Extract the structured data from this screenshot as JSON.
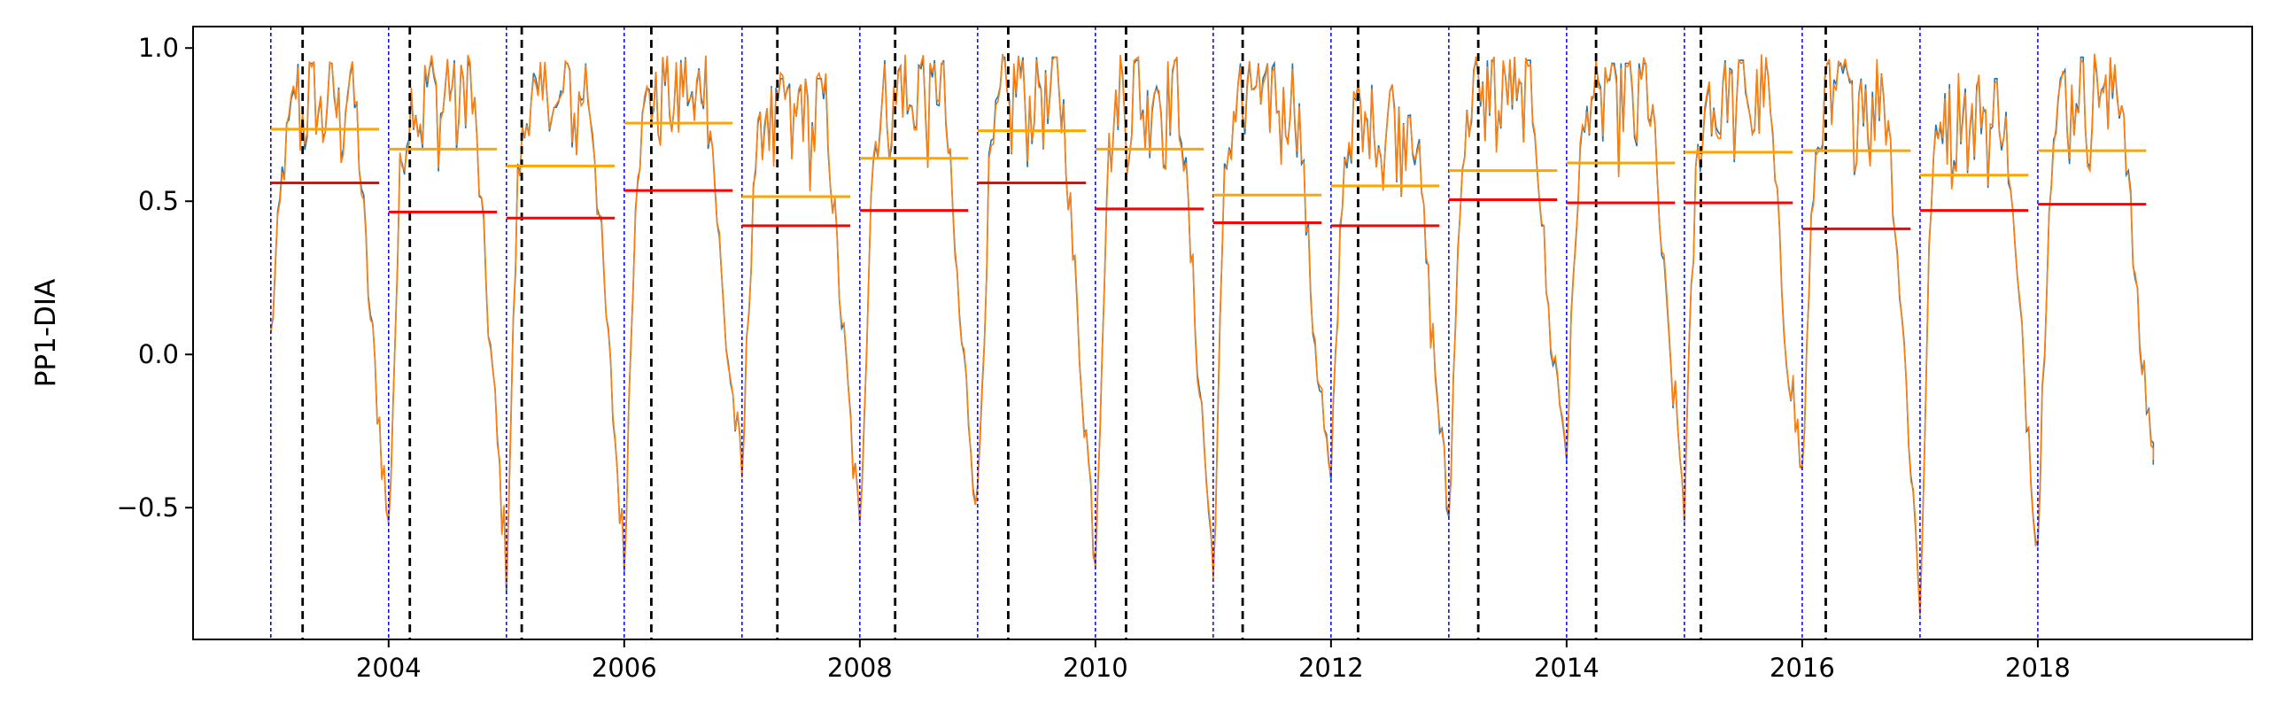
{
  "chart_data": {
    "type": "line",
    "ylabel": "PP1-DIA",
    "xlabel": "",
    "title": "",
    "xlim": [
      2002.34,
      2019.82
    ],
    "ylim": [
      -0.93,
      1.07
    ],
    "x_ticks": [
      2004,
      2006,
      2008,
      2010,
      2012,
      2014,
      2016,
      2018
    ],
    "x_tick_labels": [
      "2004",
      "2006",
      "2008",
      "2010",
      "2012",
      "2014",
      "2016",
      "2018"
    ],
    "y_ticks": [
      1.0,
      0.5,
      0.0,
      -0.5
    ],
    "y_tick_labels": [
      "1.0",
      "0.5",
      "0.0",
      "−0.5"
    ],
    "grid": false,
    "legend": "none",
    "colors": {
      "series_blue": "#1f77b4",
      "series_orange": "#ff7f0e",
      "year_boundary": "#0000ff",
      "marker_dashed": "#000000",
      "mean_red": "#ff0000",
      "mean_orange": "#ffa500"
    },
    "year_boundaries": [
      2003,
      2004,
      2005,
      2006,
      2007,
      2008,
      2009,
      2010,
      2011,
      2012,
      2013,
      2014,
      2015,
      2016,
      2017,
      2018
    ],
    "black_dashed_lines": [
      2003.27,
      2004.18,
      2005.13,
      2006.23,
      2007.3,
      2008.3,
      2009.26,
      2010.26,
      2011.25,
      2012.23,
      2013.25,
      2014.25,
      2015.14,
      2016.2
    ],
    "annual_red_level": [
      0.56,
      0.465,
      0.445,
      0.535,
      0.42,
      0.47,
      0.56,
      0.475,
      0.43,
      0.42,
      0.505,
      0.495,
      0.495,
      0.41,
      0.47,
      0.49
    ],
    "annual_orange_level": [
      0.735,
      0.67,
      0.615,
      0.755,
      0.515,
      0.64,
      0.73,
      0.67,
      0.52,
      0.55,
      0.6,
      0.625,
      0.66,
      0.665,
      0.585,
      0.665
    ],
    "annual_min": [
      -0.58,
      -0.7,
      -0.68,
      -0.41,
      -0.6,
      -0.5,
      -0.65,
      -0.72,
      -0.45,
      -0.55,
      -0.3,
      -0.48,
      -0.4,
      -0.82,
      -0.62,
      -0.38
    ],
    "annual_peak": [
      0.95,
      0.96,
      0.95,
      0.97,
      0.9,
      0.96,
      0.97,
      0.96,
      0.95,
      0.88,
      0.96,
      0.95,
      0.96,
      0.95,
      0.9,
      0.97
    ],
    "series": [
      {
        "color": "#1f77b4"
      },
      {
        "color": "#ff7f0e"
      }
    ]
  }
}
